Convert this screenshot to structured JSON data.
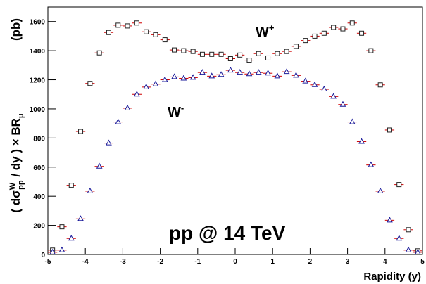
{
  "chart_data": {
    "type": "scatter",
    "xlabel": "Rapidity (y)",
    "ylabel": [
      {
        "text": "( dσ"
      },
      {
        "text": "W",
        "sup": true
      },
      {
        "text": "pp",
        "sub": true
      },
      {
        "text": " / dy ) × BR"
      },
      {
        "text": "μ",
        "sub": true
      }
    ],
    "yunit": "(pb)",
    "annotations": [
      {
        "text": "W",
        "sup": "+"
      },
      {
        "text": "W",
        "sup": "-"
      },
      {
        "text": "pp @ 14 TeV"
      }
    ],
    "xlim": [
      -5,
      5
    ],
    "ylim": [
      0,
      1700
    ],
    "xticks": [
      -5,
      -4,
      -3,
      -2,
      -1,
      0,
      1,
      2,
      3,
      4,
      5
    ],
    "yticks": [
      0,
      200,
      400,
      600,
      800,
      1000,
      1200,
      1400,
      1600
    ],
    "grid": false,
    "error_bar_color": "#d00000",
    "x": [
      -4.875,
      -4.625,
      -4.375,
      -4.125,
      -3.875,
      -3.625,
      -3.375,
      -3.125,
      -2.875,
      -2.625,
      -2.375,
      -2.125,
      -1.875,
      -1.625,
      -1.375,
      -1.125,
      -0.875,
      -0.625,
      -0.375,
      -0.125,
      0.125,
      0.375,
      0.625,
      0.875,
      1.125,
      1.375,
      1.625,
      1.875,
      2.125,
      2.375,
      2.625,
      2.875,
      3.125,
      3.375,
      3.625,
      3.875,
      4.125,
      4.375,
      4.625,
      4.875
    ],
    "series": [
      {
        "marker": "square",
        "color": "#222222",
        "values": [
          30,
          190,
          475,
          845,
          1175,
          1385,
          1525,
          1575,
          1570,
          1590,
          1530,
          1510,
          1475,
          1405,
          1400,
          1395,
          1375,
          1375,
          1375,
          1345,
          1370,
          1335,
          1380,
          1350,
          1380,
          1395,
          1430,
          1470,
          1500,
          1520,
          1560,
          1550,
          1590,
          1520,
          1400,
          1165,
          855,
          480,
          170,
          25
        ]
      },
      {
        "marker": "triangle",
        "color": "#1a1a9a",
        "values": [
          15,
          30,
          110,
          245,
          435,
          605,
          765,
          910,
          1005,
          1100,
          1150,
          1170,
          1200,
          1220,
          1210,
          1215,
          1250,
          1225,
          1235,
          1265,
          1250,
          1240,
          1250,
          1245,
          1225,
          1255,
          1230,
          1190,
          1165,
          1135,
          1085,
          1030,
          910,
          775,
          615,
          435,
          235,
          110,
          30,
          15
        ]
      }
    ]
  }
}
